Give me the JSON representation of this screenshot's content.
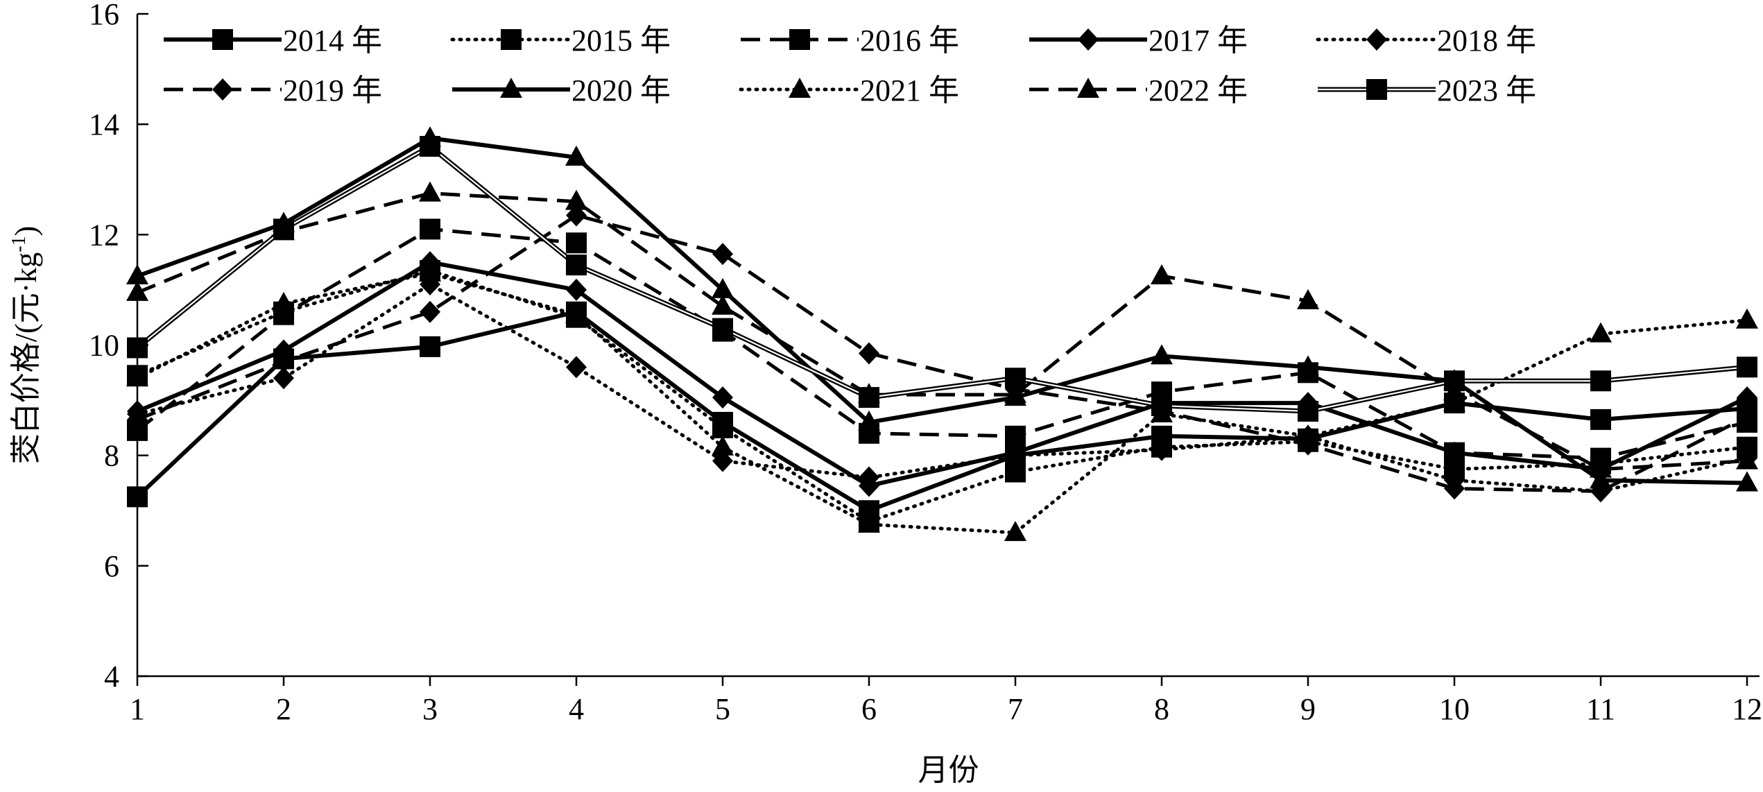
{
  "chart_data": {
    "type": "line",
    "title": "",
    "xlabel": "月份",
    "ylabel": "茭白价格/(元·kg⁻¹)",
    "ylabel_parts": {
      "main": "茭白价格/(元·kg",
      "sup": "-1",
      "close": ")"
    },
    "ylim": [
      4,
      16
    ],
    "yticks": [
      "4",
      "6",
      "8",
      "10",
      "12",
      "14",
      "16"
    ],
    "yticks_values": [
      4,
      6,
      8,
      10,
      12,
      14,
      16
    ],
    "x": [
      1,
      2,
      3,
      4,
      5,
      6,
      7,
      8,
      9,
      10,
      11,
      12
    ],
    "xticks": [
      "1",
      "2",
      "3",
      "4",
      "5",
      "6",
      "7",
      "8",
      "9",
      "10",
      "11",
      "12"
    ],
    "grid": false,
    "legend_position": "top",
    "series": [
      {
        "name": "2014 年",
        "line": "solid",
        "marker": "square",
        "values": [
          7.25,
          9.75,
          9.97,
          10.6,
          8.6,
          7.0,
          8.0,
          8.35,
          8.3,
          8.95,
          8.65,
          8.85
        ]
      },
      {
        "name": "2015 年",
        "line": "dotted",
        "marker": "square",
        "values": [
          9.45,
          10.6,
          11.35,
          10.5,
          8.5,
          6.8,
          7.7,
          8.15,
          8.25,
          7.75,
          7.85,
          8.15
        ]
      },
      {
        "name": "2016 年",
        "line": "dashed",
        "marker": "square",
        "values": [
          8.45,
          10.55,
          12.1,
          11.85,
          10.25,
          8.4,
          8.35,
          9.15,
          9.5,
          8.05,
          7.95,
          8.6
        ]
      },
      {
        "name": "2017 年",
        "line": "solid",
        "marker": "diamond",
        "values": [
          8.8,
          9.9,
          11.5,
          11.0,
          9.05,
          7.45,
          8.05,
          8.95,
          8.95,
          8.05,
          7.75,
          9.05
        ]
      },
      {
        "name": "2018 年",
        "line": "dotted",
        "marker": "diamond",
        "values": [
          8.75,
          9.4,
          11.1,
          9.6,
          7.9,
          7.6,
          8.0,
          8.1,
          8.35,
          7.55,
          7.35,
          7.95
        ]
      },
      {
        "name": "2019 年",
        "line": "dashed",
        "marker": "diamond",
        "values": [
          8.65,
          9.7,
          10.6,
          12.35,
          11.65,
          9.85,
          9.2,
          8.8,
          8.2,
          7.4,
          7.35,
          8.7
        ]
      },
      {
        "name": "2020 年",
        "line": "solid",
        "marker": "triangle",
        "values": [
          11.25,
          12.2,
          13.75,
          13.4,
          11.0,
          8.6,
          9.05,
          9.8,
          9.6,
          9.35,
          7.55,
          7.5
        ]
      },
      {
        "name": "2021 年",
        "line": "dotted",
        "marker": "triangle",
        "values": [
          9.4,
          10.75,
          11.3,
          10.55,
          8.15,
          6.75,
          6.6,
          8.75,
          8.35,
          8.95,
          10.2,
          10.45
        ]
      },
      {
        "name": "2022 年",
        "line": "dashed",
        "marker": "triangle",
        "values": [
          10.95,
          12.05,
          12.75,
          12.6,
          10.7,
          9.1,
          9.1,
          11.25,
          10.8,
          9.15,
          7.75,
          7.9
        ]
      },
      {
        "name": "2023 年",
        "line": "double",
        "marker": "square",
        "values": [
          9.95,
          12.1,
          13.6,
          11.45,
          10.3,
          9.05,
          9.4,
          8.9,
          8.8,
          9.35,
          9.35,
          9.6
        ]
      }
    ]
  }
}
